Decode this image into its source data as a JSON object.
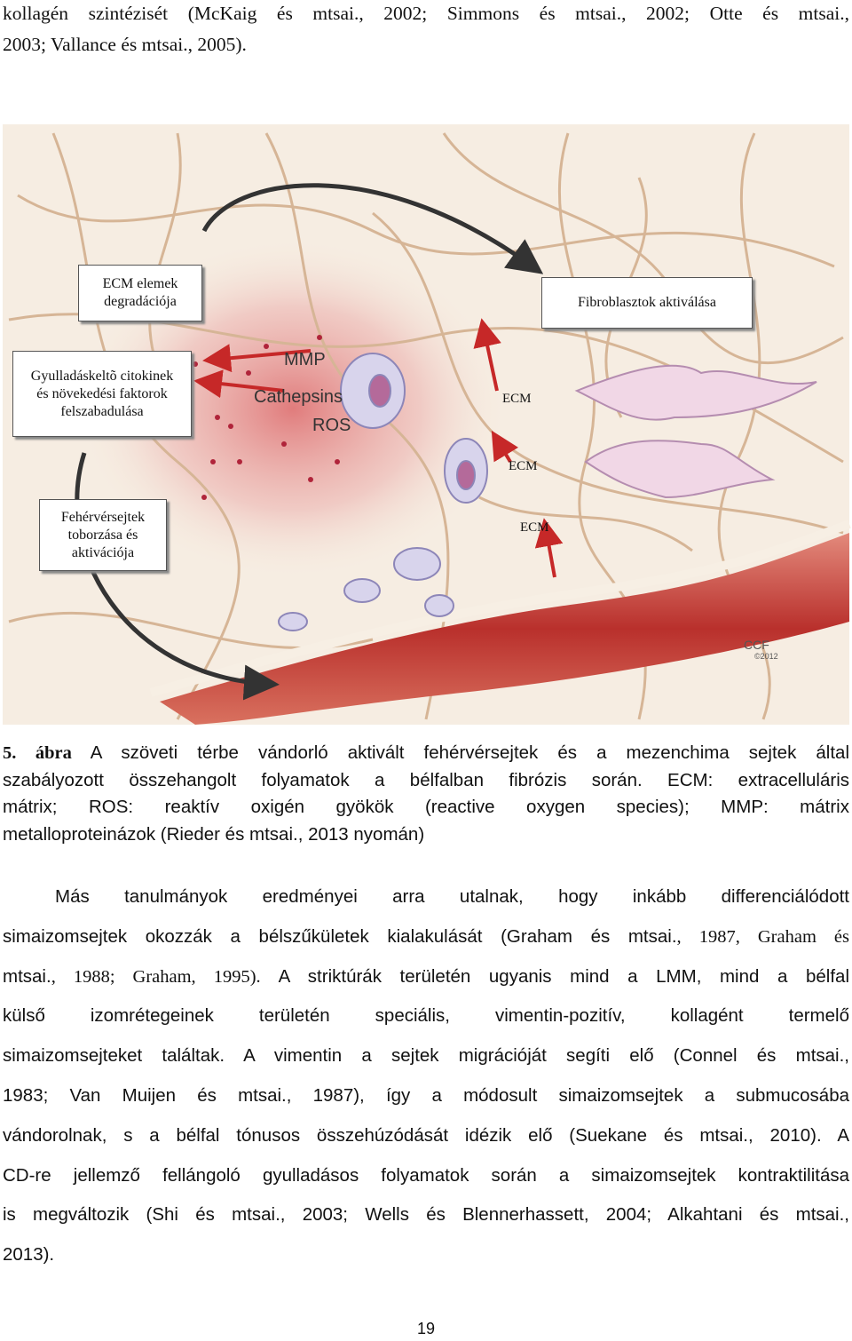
{
  "top_paragraph": {
    "lines": [
      [
        {
          "text": "kollagén szintézisét (McKaig és mtsai., 2002; Simmons és mtsai., 2002; Otte és mtsai.,",
          "font": "serif"
        }
      ],
      [
        {
          "text": "2003; Vallance és mtsai., 2005).",
          "font": "serif"
        }
      ]
    ]
  },
  "figure": {
    "boxes": [
      {
        "lines": [
          "ECM elemek",
          "degradációja"
        ]
      },
      {
        "lines": [
          "Fibroblasztok aktiválása"
        ]
      },
      {
        "lines": [
          "Gyulladáskeltõ citokinek",
          "és növekedési faktorok",
          "felszabadulása"
        ]
      },
      {
        "lines": [
          "Fehérvérsejtek",
          "toborzása és",
          "aktivációja"
        ]
      }
    ],
    "mediators": [
      "MMP",
      "Cathepsins",
      "ROS"
    ],
    "ecm_labels": [
      "ECM",
      "ECM",
      "ECM"
    ],
    "signature": [
      "CCF",
      "©2012"
    ]
  },
  "caption": {
    "lines": [
      [
        {
          "text": "5. ábra",
          "font": "bold-serif"
        },
        {
          "text": " A szöveti térbe vándorló aktivált fehérvérsejtek és a mezenchima sejtek által",
          "font": "sans"
        }
      ],
      [
        {
          "text": "szabályozott összehangolt folyamatok a bélfalban fibrózis során. ECM: extracelluláris",
          "font": "sans"
        }
      ],
      [
        {
          "text": "mátrix; ROS: reaktív oxigén gyökök (reactive oxygen species); MMP: mátrix",
          "font": "sans"
        }
      ],
      [
        {
          "text": "metalloproteinázok (Rieder és mtsai., 2013 nyomán)",
          "font": "sans"
        }
      ]
    ]
  },
  "body_paragraph": {
    "lines": [
      [
        {
          "text": "Más tanulmányok eredményei arra utalnak, hogy inkább differenciálódott",
          "font": "sans"
        }
      ],
      [
        {
          "text": "simaizomsejtek okozzák a bélszűkületek kialakulását (Graham és mtsai.",
          "font": "sans"
        },
        {
          "text": ", 1987, Graham és",
          "font": "serif"
        }
      ],
      [
        {
          "text": "mtsai.",
          "font": "sans"
        },
        {
          "text": ", 1988; Graham, 1995). ",
          "font": "serif"
        },
        {
          "text": "A striktúrák területén ugyanis mind a LMM, mind a bélfal",
          "font": "sans"
        }
      ],
      [
        {
          "text": "külső izomrétegeinek területén speciális, vimentin-pozitív, kollagént termelő",
          "font": "sans"
        }
      ],
      [
        {
          "text": "simaizomsejteket találtak. A vimentin a sejtek migrációját segíti elő (Connel és mtsai.,",
          "font": "sans"
        }
      ],
      [
        {
          "text": "1983; Van Muijen és mtsai., 1987), így a módosult simaizomsejtek a submucosába",
          "font": "sans"
        }
      ],
      [
        {
          "text": "vándorolnak, s a bélfal tónusos összehúzódását idézik elő (Suekane és mtsai., 2010). A",
          "font": "sans"
        }
      ],
      [
        {
          "text": "CD-re jellemző fellángoló gyulladásos folyamatok során a simaizomsejtek kontraktilitása",
          "font": "sans"
        }
      ],
      [
        {
          "text": "is megváltozik (Shi és mtsai., 2003; Wells és Blennerhassett, 2004; Alkahtani és mtsai.,",
          "font": "sans"
        }
      ],
      [
        {
          "text": "2013).",
          "font": "sans"
        }
      ]
    ]
  },
  "page_number": "19"
}
